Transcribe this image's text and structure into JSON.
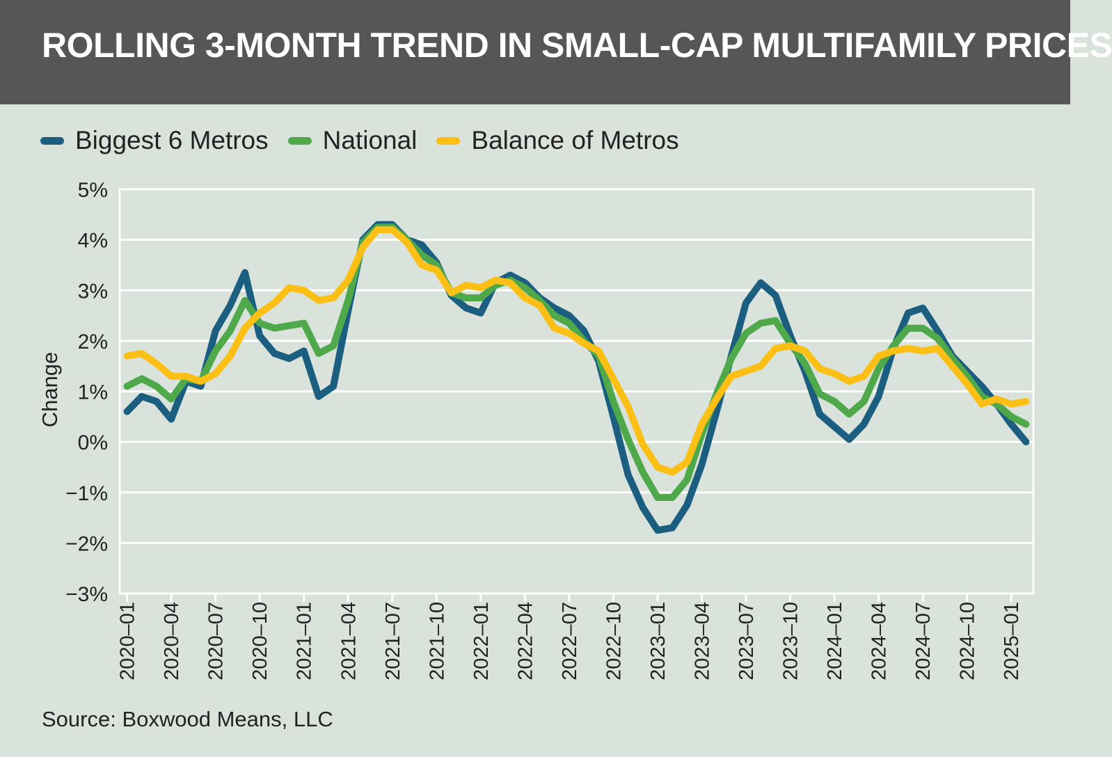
{
  "title": "ROLLING 3-MONTH TREND IN SMALL-CAP MULTIFAMILY PRICES",
  "source": "Source: Boxwood Means, LLC",
  "chart_data": {
    "type": "line",
    "ylabel": "Change",
    "xlabel": "",
    "ylim": [
      -3,
      5
    ],
    "yticks": [
      5,
      4,
      3,
      2,
      1,
      0,
      -1,
      -2,
      -3
    ],
    "ytick_labels": [
      "5%",
      "4%",
      "3%",
      "2%",
      "1%",
      "0%",
      "−1%",
      "−2%",
      "−3%"
    ],
    "grid": true,
    "legend_position": "top-left",
    "xtick_labels": [
      "2020–01",
      "2020–04",
      "2020–07",
      "2020–10",
      "2021–01",
      "2021–04",
      "2021–07",
      "2021–10",
      "2022–01",
      "2022–04",
      "2022–07",
      "2022–10",
      "2023–01",
      "2023–04",
      "2023–07",
      "2023–10",
      "2024–01",
      "2024–04",
      "2024–07",
      "2024–10",
      "2025–01"
    ],
    "x": [
      "2020-01",
      "2020-02",
      "2020-03",
      "2020-04",
      "2020-05",
      "2020-06",
      "2020-07",
      "2020-08",
      "2020-09",
      "2020-10",
      "2020-11",
      "2020-12",
      "2021-01",
      "2021-02",
      "2021-03",
      "2021-04",
      "2021-05",
      "2021-06",
      "2021-07",
      "2021-08",
      "2021-09",
      "2021-10",
      "2021-11",
      "2021-12",
      "2022-01",
      "2022-02",
      "2022-03",
      "2022-04",
      "2022-05",
      "2022-06",
      "2022-07",
      "2022-08",
      "2022-09",
      "2022-10",
      "2022-11",
      "2022-12",
      "2023-01",
      "2023-02",
      "2023-03",
      "2023-04",
      "2023-05",
      "2023-06",
      "2023-07",
      "2023-08",
      "2023-09",
      "2023-10",
      "2023-11",
      "2023-12",
      "2024-01",
      "2024-02",
      "2024-03",
      "2024-04",
      "2024-05",
      "2024-06",
      "2024-07",
      "2024-08",
      "2024-09",
      "2024-10",
      "2024-11",
      "2024-12",
      "2025-01",
      "2025-02"
    ],
    "series": [
      {
        "name": "Biggest 6 Metros",
        "color": "#1b5e80",
        "values": [
          0.6,
          0.9,
          0.8,
          0.45,
          1.2,
          1.1,
          2.2,
          2.7,
          3.35,
          2.1,
          1.75,
          1.65,
          1.8,
          0.9,
          1.1,
          2.6,
          4.0,
          4.3,
          4.3,
          4.0,
          3.9,
          3.55,
          2.9,
          2.65,
          2.55,
          3.15,
          3.3,
          3.15,
          2.85,
          2.65,
          2.5,
          2.2,
          1.6,
          0.5,
          -0.65,
          -1.3,
          -1.75,
          -1.7,
          -1.25,
          -0.45,
          0.6,
          1.7,
          2.75,
          3.15,
          2.9,
          2.1,
          1.4,
          0.55,
          0.3,
          0.05,
          0.35,
          0.9,
          1.85,
          2.55,
          2.65,
          2.2,
          1.7,
          1.4,
          1.1,
          0.75,
          0.35,
          0.0
        ]
      },
      {
        "name": "National",
        "color": "#4fa84a",
        "values": [
          1.1,
          1.25,
          1.1,
          0.85,
          1.25,
          1.2,
          1.8,
          2.2,
          2.8,
          2.35,
          2.25,
          2.3,
          2.35,
          1.75,
          1.9,
          2.8,
          3.95,
          4.25,
          4.25,
          4.0,
          3.7,
          3.5,
          2.95,
          2.85,
          2.85,
          3.1,
          3.2,
          3.05,
          2.8,
          2.5,
          2.35,
          2.0,
          1.7,
          0.8,
          0.05,
          -0.6,
          -1.1,
          -1.1,
          -0.75,
          0.15,
          0.95,
          1.65,
          2.15,
          2.35,
          2.4,
          1.95,
          1.55,
          0.95,
          0.8,
          0.55,
          0.8,
          1.45,
          1.9,
          2.25,
          2.25,
          2.05,
          1.65,
          1.3,
          0.9,
          0.75,
          0.5,
          0.35
        ]
      },
      {
        "name": "Balance of Metros",
        "color": "#fbbf15",
        "values": [
          1.7,
          1.75,
          1.55,
          1.3,
          1.3,
          1.2,
          1.35,
          1.7,
          2.25,
          2.55,
          2.75,
          3.05,
          3.0,
          2.8,
          2.85,
          3.2,
          3.85,
          4.2,
          4.2,
          3.95,
          3.5,
          3.4,
          2.95,
          3.1,
          3.05,
          3.2,
          3.15,
          2.85,
          2.7,
          2.25,
          2.15,
          1.95,
          1.8,
          1.25,
          0.7,
          -0.05,
          -0.5,
          -0.6,
          -0.4,
          0.35,
          0.85,
          1.3,
          1.4,
          1.5,
          1.85,
          1.9,
          1.8,
          1.45,
          1.35,
          1.2,
          1.3,
          1.7,
          1.8,
          1.85,
          1.8,
          1.85,
          1.5,
          1.15,
          0.75,
          0.85,
          0.75,
          0.8
        ]
      }
    ]
  }
}
